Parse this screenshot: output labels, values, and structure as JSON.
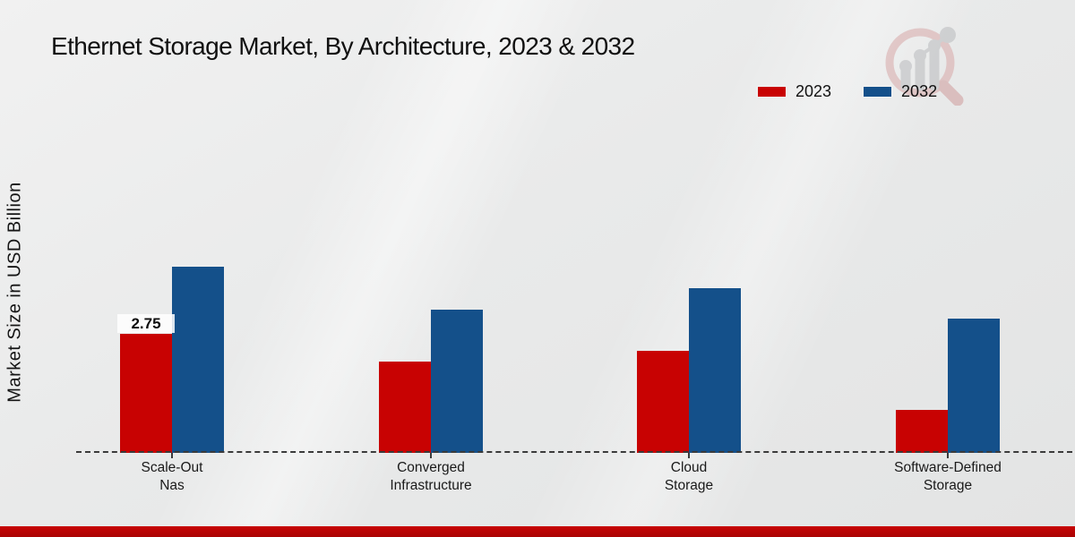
{
  "title": "Ethernet Storage Market, By Architecture, 2023 & 2032",
  "watermark": {
    "icon": "magnifier-trend-logo"
  },
  "legend": {
    "items": [
      {
        "label": "2023",
        "color": "#c80202"
      },
      {
        "label": "2032",
        "color": "#14508a"
      }
    ]
  },
  "colors": {
    "series_2023": "#c80202",
    "series_2032": "#14508a",
    "bottom_band": "#c00404",
    "axis": "#3b3b3b"
  },
  "chart_data": {
    "type": "bar",
    "title": "Ethernet Storage Market, By Architecture, 2023 & 2032",
    "categories": [
      "Scale-Out Nas",
      "Converged Infrastructure",
      "Cloud Storage",
      "Software-Defined Storage"
    ],
    "category_label_lines": [
      [
        "Scale-Out",
        "Nas"
      ],
      [
        "Converged",
        "Infrastructure"
      ],
      [
        "Cloud",
        "Storage"
      ],
      [
        "Software-Defined",
        "Storage"
      ]
    ],
    "series": [
      {
        "name": "2023",
        "color": "#c80202",
        "values": [
          2.75,
          2.1,
          2.35,
          1.0
        ]
      },
      {
        "name": "2032",
        "color": "#14508a",
        "values": [
          4.3,
          3.3,
          3.8,
          3.1
        ]
      }
    ],
    "xlabel": "",
    "ylabel": "Market Size in USD Billion",
    "ylim": [
      0,
      4.5
    ],
    "grid": false,
    "legend_position": "top-right",
    "annotations": [
      {
        "series": "2023",
        "category": "Scale-Out Nas",
        "category_index": 0,
        "text": "2.75"
      }
    ]
  }
}
